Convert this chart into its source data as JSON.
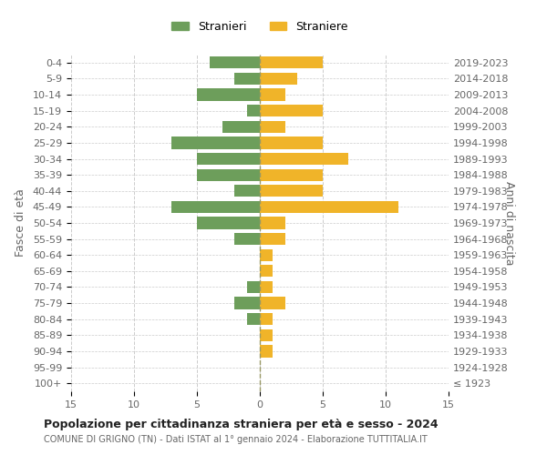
{
  "age_groups": [
    "100+",
    "95-99",
    "90-94",
    "85-89",
    "80-84",
    "75-79",
    "70-74",
    "65-69",
    "60-64",
    "55-59",
    "50-54",
    "45-49",
    "40-44",
    "35-39",
    "30-34",
    "25-29",
    "20-24",
    "15-19",
    "10-14",
    "5-9",
    "0-4"
  ],
  "birth_years": [
    "≤ 1923",
    "1924-1928",
    "1929-1933",
    "1934-1938",
    "1939-1943",
    "1944-1948",
    "1949-1953",
    "1954-1958",
    "1959-1963",
    "1964-1968",
    "1969-1973",
    "1974-1978",
    "1979-1983",
    "1984-1988",
    "1989-1993",
    "1994-1998",
    "1999-2003",
    "2004-2008",
    "2009-2013",
    "2014-2018",
    "2019-2023"
  ],
  "males": [
    0,
    0,
    0,
    0,
    1,
    2,
    1,
    0,
    0,
    2,
    5,
    7,
    2,
    5,
    5,
    7,
    3,
    1,
    5,
    2,
    4
  ],
  "females": [
    0,
    0,
    1,
    1,
    1,
    2,
    1,
    1,
    1,
    2,
    2,
    11,
    5,
    5,
    7,
    5,
    2,
    5,
    2,
    3,
    5
  ],
  "male_color": "#6d9e5b",
  "female_color": "#f0b429",
  "male_label": "Stranieri",
  "female_label": "Straniere",
  "title": "Popolazione per cittadinanza straniera per età e sesso - 2024",
  "subtitle": "COMUNE DI GRIGNO (TN) - Dati ISTAT al 1° gennaio 2024 - Elaborazione TUTTITALIA.IT",
  "ylabel_left": "Fasce di età",
  "ylabel_right": "Anni di nascita",
  "xlim": 15,
  "background_color": "#ffffff",
  "grid_color": "#cccccc",
  "text_color": "#666666"
}
